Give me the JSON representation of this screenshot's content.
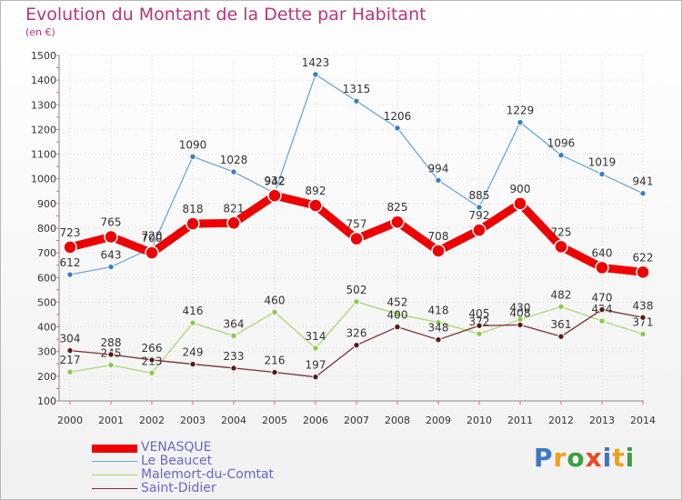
{
  "title": "Evolution du Montant de la Dette par Habitant",
  "subtitle": "(en €)",
  "brand": {
    "letters": [
      "P",
      "r",
      "o",
      "x",
      "i",
      "t",
      "i"
    ],
    "colors": [
      "#3a78c8",
      "#f0a020",
      "#3aa040",
      "#e84a20",
      "#3a78c8",
      "#f0a020",
      "#3aa040"
    ]
  },
  "chart_data": {
    "type": "line",
    "x": [
      "2000",
      "2001",
      "2002",
      "2003",
      "2004",
      "2005",
      "2006",
      "2007",
      "2008",
      "2009",
      "2010",
      "2011",
      "2012",
      "2013",
      "2014"
    ],
    "ylim": [
      100,
      1500
    ],
    "yticks": [
      "100",
      "200",
      "300",
      "400",
      "500",
      "600",
      "700",
      "800",
      "900",
      "1000",
      "1100",
      "1200",
      "1300",
      "1400",
      "1500"
    ],
    "grid": true,
    "legend": "bottom-left",
    "series": [
      {
        "name": "Le Beaucet",
        "color": "#6ea8d8",
        "marker": "#3a7fc0",
        "values": [
          612,
          643,
          720,
          1090,
          1028,
          942,
          1423,
          1315,
          1206,
          994,
          885,
          1229,
          1096,
          1019,
          941
        ],
        "labels": [
          "612",
          "643",
          "720",
          "1090",
          "1028",
          "942",
          "1423",
          "1315",
          "1206",
          "994",
          "885",
          "1229",
          "1096",
          "1019",
          "941"
        ]
      },
      {
        "name": "Malemort-du-Comtat",
        "color": "#a8d870",
        "marker": "#8cc850",
        "values": [
          217,
          245,
          213,
          416,
          364,
          460,
          314,
          502,
          452,
          418,
          372,
          430,
          482,
          424,
          371
        ],
        "labels": [
          "217",
          "245",
          "213",
          "416",
          "364",
          "460",
          "314",
          "502",
          "452",
          "418",
          "372",
          "430",
          "482",
          "424",
          "371"
        ]
      },
      {
        "name": "Saint-Didier",
        "color": "#7a3030",
        "marker": "#5a1818",
        "values": [
          304,
          288,
          266,
          249,
          233,
          216,
          197,
          326,
          400,
          348,
          405,
          408,
          361,
          470,
          438
        ],
        "labels": [
          "304",
          "288",
          "266",
          "249",
          "233",
          "216",
          "197",
          "326",
          "400",
          "348",
          "405",
          "408",
          "361",
          "470",
          "438"
        ]
      },
      {
        "name": "VENASQUE",
        "color": "#ee0000",
        "marker": "#ee0000",
        "values": [
          723,
          765,
          700,
          818,
          821,
          932,
          892,
          757,
          825,
          708,
          792,
          900,
          725,
          640,
          622
        ],
        "labels": [
          "723",
          "765",
          "700",
          "818",
          "821",
          "932",
          "892",
          "757",
          "825",
          "708",
          "792",
          "900",
          "725",
          "640",
          "622"
        ]
      }
    ]
  },
  "legend": {
    "items": [
      {
        "name": "VENASQUE",
        "color": "#ee0000",
        "thick": true
      },
      {
        "name": "Le Beaucet",
        "color": "#6ea8d8",
        "thick": false
      },
      {
        "name": "Malemort-du-Comtat",
        "color": "#a8d870",
        "thick": false
      },
      {
        "name": "Saint-Didier",
        "color": "#7a3030",
        "thick": false
      }
    ]
  }
}
